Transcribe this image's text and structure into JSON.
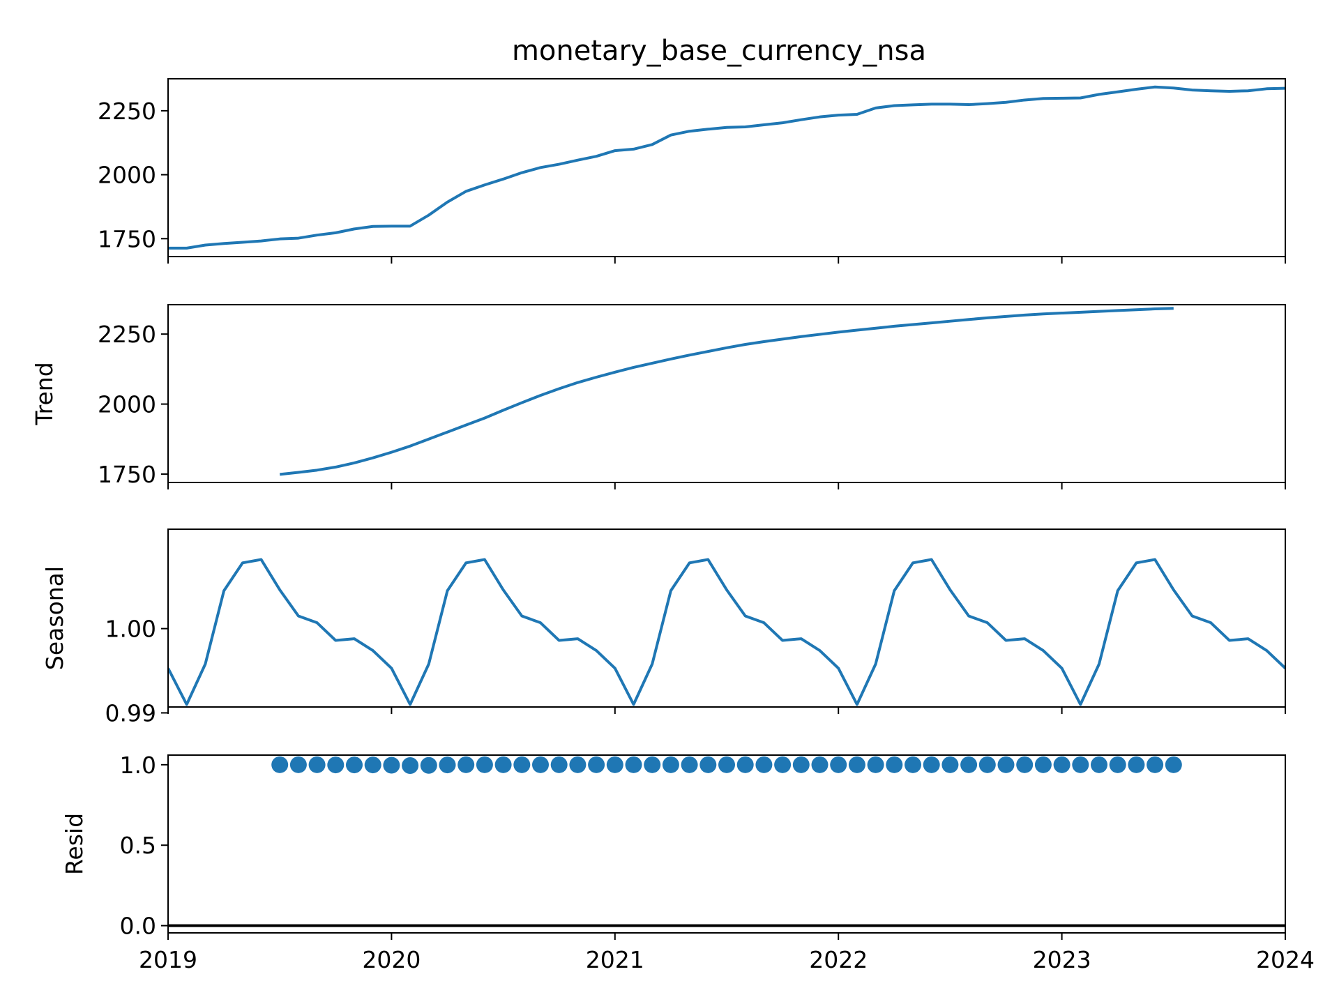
{
  "chart_data": {
    "type": "line",
    "title": "monetary_base_currency_nsa",
    "line_color": "#1f77b4",
    "x_range": [
      "2019-01",
      "2024-01"
    ],
    "x_tick_labels": [
      "2019",
      "2020",
      "2021",
      "2022",
      "2023",
      "2024"
    ],
    "panels": [
      {
        "name": "observed",
        "ylabel": "",
        "ylim": [
          1680,
          2375
        ],
        "y_ticks": [
          1750,
          2000,
          2250
        ],
        "y_tick_labels": [
          "1750",
          "2000",
          "2250"
        ],
        "series": [
          {
            "kind": "line",
            "start": "2019-01",
            "values": [
              1713,
              1713,
              1725,
              1731,
              1736,
              1741,
              1749,
              1752,
              1764,
              1773,
              1788,
              1798,
              1799,
              1799,
              1842,
              1893,
              1935,
              1960,
              1983,
              2008,
              2028,
              2041,
              2057,
              2072,
              2094,
              2100,
              2118,
              2155,
              2170,
              2178,
              2185,
              2187,
              2195,
              2203,
              2215,
              2226,
              2233,
              2236,
              2261,
              2270,
              2273,
              2276,
              2276,
              2274,
              2278,
              2283,
              2292,
              2298,
              2299,
              2300,
              2314,
              2324,
              2334,
              2343,
              2339,
              2331,
              2328,
              2326,
              2328,
              2336,
              2338
            ]
          }
        ]
      },
      {
        "name": "trend",
        "ylabel": "Trend",
        "ylim": [
          1720,
          2355
        ],
        "y_ticks": [
          1750,
          2000,
          2250
        ],
        "y_tick_labels": [
          "1750",
          "2000",
          "2250"
        ],
        "series": [
          {
            "kind": "line",
            "start": "2019-07",
            "values": [
              1749,
              1756,
              1764,
              1775,
              1790,
              1808,
              1828,
              1850,
              1875,
              1900,
              1925,
              1950,
              1978,
              2005,
              2031,
              2055,
              2077,
              2096,
              2114,
              2131,
              2146,
              2161,
              2175,
              2188,
              2201,
              2213,
              2223,
              2232,
              2241,
              2249,
              2257,
              2264,
              2271,
              2278,
              2284,
              2290,
              2296,
              2302,
              2308,
              2313,
              2318,
              2322,
              2325,
              2328,
              2331,
              2334,
              2337,
              2340,
              2342
            ]
          }
        ]
      },
      {
        "name": "seasonal",
        "ylabel": "Seasonal",
        "ylim": [
          0.9907,
          1.0118
        ],
        "y_ticks": [
          0.99,
          1.0
        ],
        "y_tick_labels": [
          "0.99",
          "1.00"
        ],
        "series": [
          {
            "kind": "line",
            "start": "2019-01",
            "values": [
              0.9953,
              0.991,
              0.9958,
              1.0045,
              1.0078,
              1.0082,
              1.0046,
              1.0015,
              1.0007,
              0.9986,
              0.9988,
              0.9974,
              0.9953,
              0.991,
              0.9958,
              1.0045,
              1.0078,
              1.0082,
              1.0046,
              1.0015,
              1.0007,
              0.9986,
              0.9988,
              0.9974,
              0.9953,
              0.991,
              0.9958,
              1.0045,
              1.0078,
              1.0082,
              1.0046,
              1.0015,
              1.0007,
              0.9986,
              0.9988,
              0.9974,
              0.9953,
              0.991,
              0.9958,
              1.0045,
              1.0078,
              1.0082,
              1.0046,
              1.0015,
              1.0007,
              0.9986,
              0.9988,
              0.9974,
              0.9953,
              0.991,
              0.9958,
              1.0045,
              1.0078,
              1.0082,
              1.0046,
              1.0015,
              1.0007,
              0.9986,
              0.9988,
              0.9974,
              0.9953
            ]
          }
        ]
      },
      {
        "name": "resid",
        "ylabel": "Resid",
        "ylim": [
          -0.045,
          1.06
        ],
        "y_ticks": [
          0.0,
          0.5,
          1.0
        ],
        "y_tick_labels": [
          "0.0",
          "0.5",
          "1.0"
        ],
        "zero_line": true,
        "series": [
          {
            "kind": "scatter",
            "start": "2019-07",
            "values": [
              1.0,
              1.0,
              1.0,
              0.999,
              0.999,
              0.999,
              0.997,
              0.995,
              0.996,
              0.999,
              1.0,
              1.0,
              1.0,
              1.0,
              1.0,
              1.0,
              1.0,
              1.0,
              1.0,
              1.0,
              1.0,
              1.0,
              1.0,
              1.0,
              1.0,
              1.0,
              1.0,
              1.0,
              1.0,
              1.0,
              1.0,
              1.0,
              1.0,
              1.0,
              1.0,
              1.0,
              1.0,
              1.0,
              1.0,
              1.0,
              1.0,
              1.0,
              1.0,
              1.0,
              1.0,
              1.0,
              1.0,
              1.0,
              1.0
            ]
          }
        ]
      }
    ]
  }
}
